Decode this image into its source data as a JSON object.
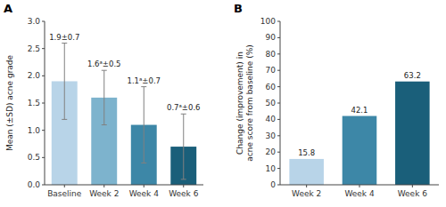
{
  "chart_data": [
    {
      "type": "bar",
      "title": "A",
      "categories": [
        "Baseline",
        "Week 2",
        "Week 4",
        "Week 6"
      ],
      "values": [
        1.9,
        1.6,
        1.1,
        0.7
      ],
      "errors": [
        0.7,
        0.5,
        0.7,
        0.6
      ],
      "value_labels": [
        "1.9±0.7",
        "1.6ᵃ±0.5",
        "1.1ᵃ±0.7",
        "0.7ᵃ±0.6"
      ],
      "data_labels": true,
      "colors": [
        "#b8d4e8",
        "#7db3cd",
        "#3d87a7",
        "#1a5f7a"
      ],
      "ylabel": "Mean (±SD) acne grade",
      "ylim": [
        0,
        3.0
      ],
      "yticks": [
        {
          "value": 0,
          "label": "0.0"
        },
        0.5,
        {
          "value": 1,
          "label": "1.0"
        },
        1.5,
        {
          "value": 2,
          "label": "2.0"
        },
        2.5,
        {
          "value": 3,
          "label": "3.0"
        }
      ]
    },
    {
      "type": "bar",
      "title": "B",
      "categories": [
        "Week 2",
        "Week 4",
        "Week 6"
      ],
      "values": [
        15.8,
        42.1,
        63.2
      ],
      "data_labels": true,
      "colors": [
        "#b8d4e8",
        "#3d87a7",
        "#1a5f7a"
      ],
      "ylabel": "Change (improvement) in\nacne score from baseline (%)",
      "ylim": [
        0,
        100
      ],
      "yticks": [
        0,
        10,
        20,
        30,
        40,
        50,
        60,
        70,
        80,
        90,
        100
      ]
    }
  ]
}
